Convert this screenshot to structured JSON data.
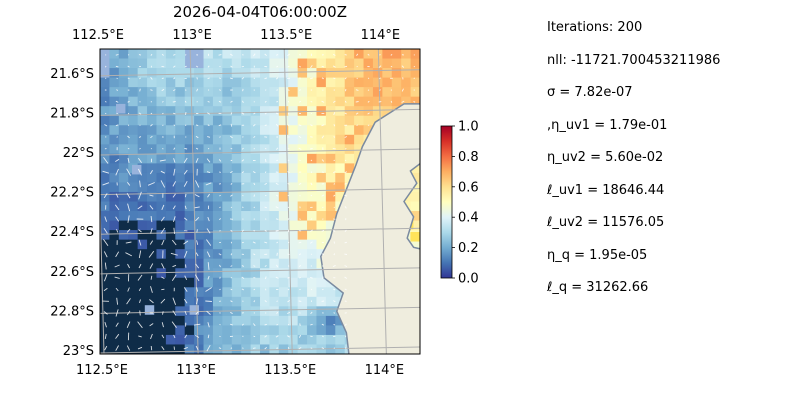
{
  "chart_data": {
    "type": "heatmap",
    "title": "2026-04-04T06:00:00Z",
    "xlabel": "",
    "ylabel": "",
    "x_ticks": [
      "112.5°E",
      "113°E",
      "113.5°E",
      "114°E"
    ],
    "x_tick_values": [
      112.5,
      113.0,
      113.5,
      114.0
    ],
    "y_ticks": [
      "21.6°S",
      "21.8°S",
      "22°S",
      "22.2°S",
      "22.4°S",
      "22.6°S",
      "22.8°S",
      "23°S"
    ],
    "y_tick_values": [
      -21.6,
      -21.8,
      -22.0,
      -22.2,
      -22.4,
      -22.6,
      -22.8,
      -23.0
    ],
    "xlim": [
      112.5,
      114.2
    ],
    "ylim": [
      -23.02,
      -21.48
    ],
    "x_ticks_on_top": true,
    "grid": true,
    "colorbar": {
      "ticks": [
        "0.0",
        "0.2",
        "0.4",
        "0.6",
        "0.8",
        "1.0"
      ],
      "tick_values": [
        0.0,
        0.2,
        0.4,
        0.6,
        0.8,
        1.0
      ],
      "range": [
        0.0,
        1.0
      ],
      "colormap": "RdYlBu_r"
    },
    "field": "gridded scalar field with overlaid velocity arrows; land in the lower right",
    "colors": {
      "land": "#efedde",
      "coast": "#7a8aa0",
      "background": "#98b3dc",
      "grid": "#b0b0b0",
      "arrows": "#ffffff"
    }
  },
  "stats": [
    "Iterations: 200",
    "nll: -11721.700453211986",
    "σ = 7.82e-07",
    ",η_uv1 = 1.79e-01",
    "η_uv2 = 5.60e-02",
    "ℓ_uv1 = 18646.44",
    "ℓ_uv2 = 11576.05",
    "η_q = 1.95e-05",
    "ℓ_q = 31262.66"
  ]
}
